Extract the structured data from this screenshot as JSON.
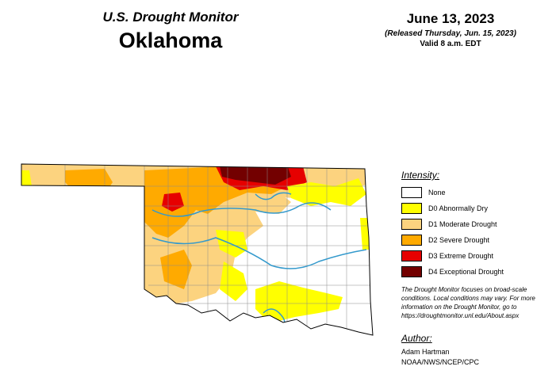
{
  "header": {
    "subtitle": "U.S. Drought Monitor",
    "state": "Oklahoma",
    "date": "June 13, 2023",
    "released": "(Released Thursday, Jun. 15, 2023)",
    "valid": "Valid 8 a.m. EDT"
  },
  "legend": {
    "title": "Intensity:",
    "items": [
      {
        "label": "None",
        "color": "#ffffff"
      },
      {
        "label": "D0 Abnormally Dry",
        "color": "#ffff00"
      },
      {
        "label": "D1 Moderate Drought",
        "color": "#fcd37f"
      },
      {
        "label": "D2 Severe Drought",
        "color": "#ffaa00"
      },
      {
        "label": "D3 Extreme Drought",
        "color": "#e60000"
      },
      {
        "label": "D4 Exceptional Drought",
        "color": "#730000"
      }
    ]
  },
  "note": "The Drought Monitor focuses on broad-scale conditions. Local conditions may vary. For more information on the Drought Monitor, go to https://droughtmonitor.unl.edu/About.aspx",
  "author": {
    "title": "Author:",
    "name": "Adam Hartman",
    "org": "NOAA/NWS/NCEP/CPC"
  }
}
